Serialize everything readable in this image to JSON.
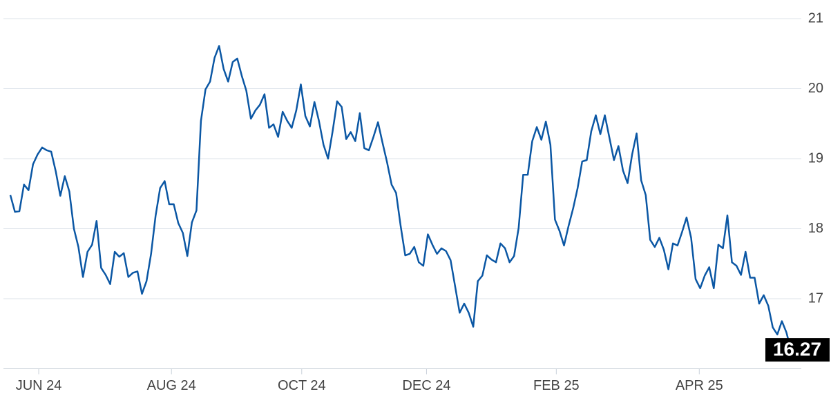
{
  "chart_data": {
    "type": "line",
    "series": [
      {
        "color": "#0b57a4",
        "values": [
          18.48,
          18.24,
          18.25,
          18.63,
          18.55,
          18.92,
          19.06,
          19.16,
          19.12,
          19.1,
          18.82,
          18.47,
          18.75,
          18.53,
          18.0,
          17.74,
          17.31,
          17.67,
          17.77,
          18.11,
          17.44,
          17.34,
          17.21,
          17.67,
          17.6,
          17.65,
          17.31,
          17.37,
          17.39,
          17.07,
          17.25,
          17.64,
          18.18,
          18.58,
          18.68,
          18.35,
          18.35,
          18.08,
          17.94,
          17.61,
          18.09,
          18.26,
          19.54,
          19.99,
          20.1,
          20.44,
          20.61,
          20.28,
          20.1,
          20.38,
          20.43,
          20.18,
          19.97,
          19.57,
          19.69,
          19.77,
          19.92,
          19.44,
          19.49,
          19.31,
          19.67,
          19.54,
          19.44,
          19.69,
          20.06,
          19.61,
          19.46,
          19.81,
          19.54,
          19.2,
          19.0,
          19.39,
          19.82,
          19.74,
          19.28,
          19.38,
          19.25,
          19.65,
          19.15,
          19.12,
          19.31,
          19.52,
          19.23,
          18.95,
          18.63,
          18.51,
          18.04,
          17.62,
          17.64,
          17.74,
          17.52,
          17.47,
          17.92,
          17.77,
          17.64,
          17.72,
          17.68,
          17.55,
          17.18,
          16.8,
          16.93,
          16.8,
          16.6,
          17.25,
          17.33,
          17.62,
          17.56,
          17.52,
          17.79,
          17.72,
          17.52,
          17.61,
          18.01,
          18.77,
          18.77,
          19.25,
          19.45,
          19.27,
          19.53,
          19.2,
          18.13,
          17.97,
          17.76,
          18.04,
          18.29,
          18.58,
          18.96,
          18.98,
          19.39,
          19.62,
          19.35,
          19.62,
          19.3,
          18.98,
          19.18,
          18.83,
          18.65,
          19.06,
          19.36,
          18.69,
          18.48,
          17.84,
          17.74,
          17.87,
          17.7,
          17.42,
          17.79,
          17.76,
          17.95,
          18.16,
          17.87,
          17.28,
          17.15,
          17.33,
          17.45,
          17.15,
          17.77,
          17.72,
          18.19,
          17.52,
          17.47,
          17.34,
          17.67,
          17.3,
          17.3,
          16.93,
          17.05,
          16.9,
          16.59,
          16.49,
          16.68,
          16.52,
          16.27
        ]
      }
    ],
    "xlim": [
      0,
      172
    ],
    "xticks": [
      {
        "value": 6.25,
        "label": "JUN 24"
      },
      {
        "value": 35.5,
        "label": "AUG 24"
      },
      {
        "value": 64.2,
        "label": "OCT 24"
      },
      {
        "value": 91.7,
        "label": "DEC 24"
      },
      {
        "value": 120.3,
        "label": "FEB 25"
      },
      {
        "value": 151.8,
        "label": "APR 25"
      }
    ],
    "ylim": [
      16,
      21
    ],
    "yticks": [
      17,
      18,
      19,
      20,
      21
    ],
    "grid": true
  }
}
